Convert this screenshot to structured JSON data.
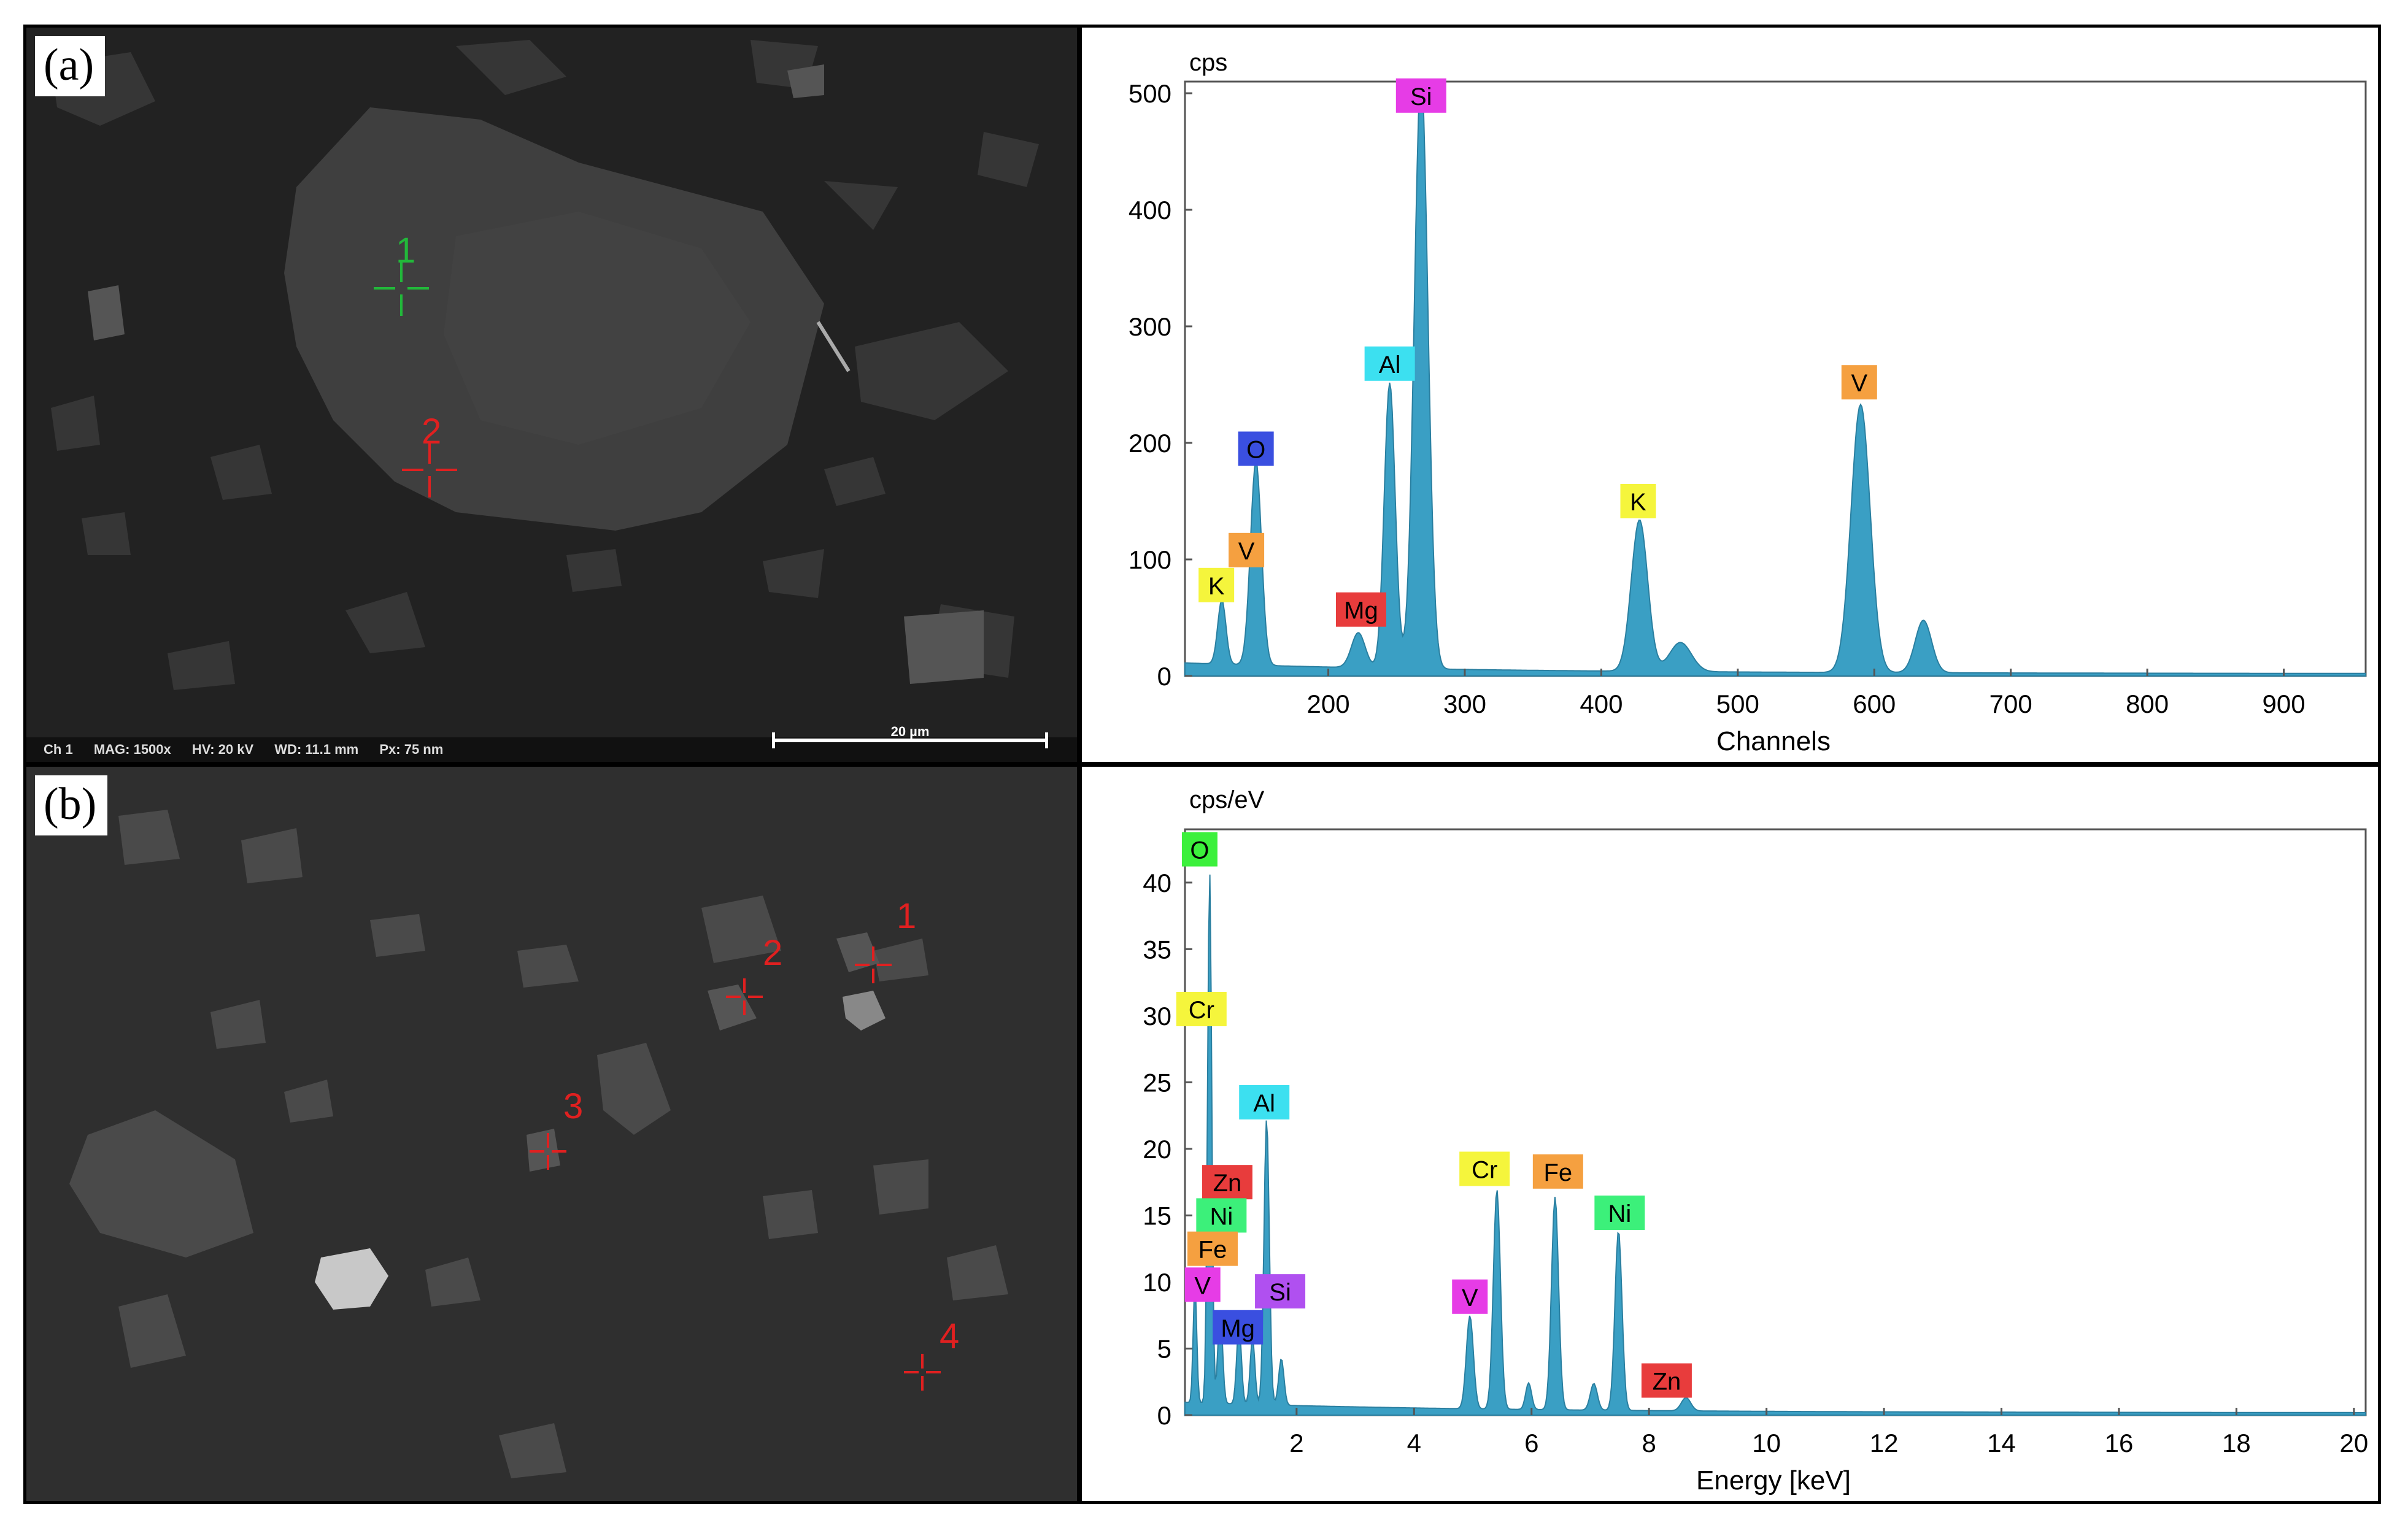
{
  "panels": {
    "a": {
      "label": "(a)",
      "markers": [
        {
          "num": "1",
          "color": "green"
        },
        {
          "num": "2",
          "color": "red"
        }
      ],
      "databar": [
        "Ch 1",
        "MAG: 1500x",
        "HV: 20 kV",
        "WD: 11.1 mm",
        "Px: 75 nm"
      ],
      "scalebar": "20 µm"
    },
    "b": {
      "label": "(b)",
      "markers": [
        {
          "num": "1",
          "color": "red"
        },
        {
          "num": "2",
          "color": "red"
        },
        {
          "num": "3",
          "color": "red"
        },
        {
          "num": "4",
          "color": "red"
        }
      ]
    }
  },
  "chart_data": [
    {
      "type": "area",
      "units_label": "cps",
      "xlabel": "Channels",
      "ylabel": "",
      "xlim": [
        95,
        960
      ],
      "ylim": [
        0,
        510
      ],
      "x_ticks": [
        200,
        300,
        400,
        500,
        600,
        700,
        800,
        900
      ],
      "y_ticks": [
        0,
        100,
        200,
        300,
        400,
        500
      ],
      "color": "#3a9fc4",
      "peaks": [
        {
          "x": 122,
          "y": 55,
          "w": 3
        },
        {
          "x": 147,
          "y": 175,
          "w": 4
        },
        {
          "x": 222,
          "y": 30,
          "w": 5
        },
        {
          "x": 245,
          "y": 245,
          "w": 4
        },
        {
          "x": 268,
          "y": 510,
          "w": 5
        },
        {
          "x": 428,
          "y": 130,
          "w": 6
        },
        {
          "x": 458,
          "y": 25,
          "w": 8
        },
        {
          "x": 590,
          "y": 230,
          "w": 7
        },
        {
          "x": 636,
          "y": 45,
          "w": 6
        }
      ],
      "element_labels": [
        {
          "text": "K",
          "x": 118,
          "y": 78,
          "color": "#f5f53c"
        },
        {
          "text": "V",
          "x": 140,
          "y": 108,
          "color": "#f5a040"
        },
        {
          "text": "O",
          "x": 147,
          "y": 195,
          "color": "#3a4fe0"
        },
        {
          "text": "Mg",
          "x": 224,
          "y": 57,
          "color": "#e83c3c"
        },
        {
          "text": "Al",
          "x": 245,
          "y": 268,
          "color": "#3ce0f0"
        },
        {
          "text": "Si",
          "x": 268,
          "y": 498,
          "color": "#e63ce6"
        },
        {
          "text": "K",
          "x": 427,
          "y": 150,
          "color": "#f5f53c"
        },
        {
          "text": "V",
          "x": 589,
          "y": 252,
          "color": "#f5a040"
        }
      ]
    },
    {
      "type": "area",
      "units_label": "cps/eV",
      "xlabel": "Energy [keV]",
      "ylabel": "",
      "xlim": [
        0.1,
        20.2
      ],
      "ylim": [
        0,
        44
      ],
      "x_ticks": [
        2,
        4,
        6,
        8,
        10,
        12,
        14,
        16,
        18,
        20
      ],
      "y_ticks": [
        0,
        5,
        10,
        15,
        20,
        25,
        30,
        35,
        40
      ],
      "color": "#3a9fc4",
      "peaks": [
        {
          "x": 0.27,
          "y": 9,
          "w": 0.03
        },
        {
          "x": 0.52,
          "y": 40,
          "w": 0.035
        },
        {
          "x": 0.7,
          "y": 7,
          "w": 0.04
        },
        {
          "x": 1.02,
          "y": 6,
          "w": 0.04
        },
        {
          "x": 1.25,
          "y": 5,
          "w": 0.04
        },
        {
          "x": 1.49,
          "y": 21.5,
          "w": 0.045
        },
        {
          "x": 1.74,
          "y": 3.5,
          "w": 0.045
        },
        {
          "x": 4.95,
          "y": 7,
          "w": 0.06
        },
        {
          "x": 5.41,
          "y": 16.5,
          "w": 0.06
        },
        {
          "x": 5.95,
          "y": 2,
          "w": 0.05
        },
        {
          "x": 6.4,
          "y": 16,
          "w": 0.06
        },
        {
          "x": 7.06,
          "y": 2,
          "w": 0.06
        },
        {
          "x": 7.48,
          "y": 13.5,
          "w": 0.06
        },
        {
          "x": 8.63,
          "y": 1,
          "w": 0.08
        }
      ],
      "element_labels": [
        {
          "text": "O",
          "x": 0.35,
          "y": 42.5,
          "color": "#3cf03c"
        },
        {
          "text": "Cr",
          "x": 0.38,
          "y": 30.5,
          "color": "#f5f53c"
        },
        {
          "text": "Al",
          "x": 1.45,
          "y": 23.5,
          "color": "#3ce0f0"
        },
        {
          "text": "Zn",
          "x": 0.82,
          "y": 17.5,
          "color": "#e83c3c"
        },
        {
          "text": "Ni",
          "x": 0.72,
          "y": 15.0,
          "color": "#3cf07a"
        },
        {
          "text": "Fe",
          "x": 0.57,
          "y": 12.5,
          "color": "#f5a040"
        },
        {
          "text": "V",
          "x": 0.4,
          "y": 9.8,
          "color": "#e63ce6"
        },
        {
          "text": "Si",
          "x": 1.72,
          "y": 9.3,
          "color": "#b050f0"
        },
        {
          "text": "Mg",
          "x": 1.0,
          "y": 6.6,
          "color": "#3a4fe0"
        },
        {
          "text": "V",
          "x": 4.95,
          "y": 8.9,
          "color": "#e63ce6"
        },
        {
          "text": "Cr",
          "x": 5.2,
          "y": 18.5,
          "color": "#f5f53c"
        },
        {
          "text": "Fe",
          "x": 6.45,
          "y": 18.3,
          "color": "#f5a040"
        },
        {
          "text": "Ni",
          "x": 7.5,
          "y": 15.2,
          "color": "#3cf07a"
        },
        {
          "text": "Zn",
          "x": 8.3,
          "y": 2.6,
          "color": "#e83c3c"
        }
      ]
    }
  ]
}
